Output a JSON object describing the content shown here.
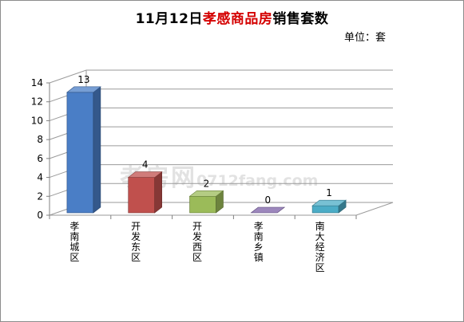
{
  "title": {
    "prefix": "11月12日",
    "highlight": "孝感商品房",
    "suffix": "销售套数"
  },
  "unit": "单位：套",
  "watermark": {
    "main": "孝房网",
    "sub": "0712fang.com"
  },
  "colors": {
    "title_highlight": "#d40000",
    "bars": [
      "#4a7ec6",
      "#c0504d",
      "#9bbb59",
      "#7b5fa6",
      "#4bacc6"
    ]
  },
  "chart_data": {
    "type": "bar",
    "style": "3d-column",
    "categories": [
      "孝南城区",
      "开发东区",
      "开发西区",
      "孝南乡镇",
      "南大经济区"
    ],
    "values": [
      13,
      4,
      2,
      0,
      1
    ],
    "data_labels": [
      "13",
      "4",
      "2",
      "0",
      "1"
    ],
    "ylim": [
      0,
      14
    ],
    "yticks": [
      "0",
      "2",
      "4",
      "6",
      "8",
      "10",
      "12",
      "14"
    ],
    "grid": true,
    "legend": "none"
  }
}
